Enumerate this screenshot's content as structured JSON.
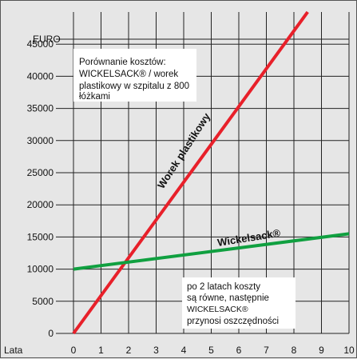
{
  "chart_data": {
    "type": "line",
    "ylabel": "EURO",
    "xlabel": "Lata",
    "xlim": [
      0,
      10
    ],
    "ylim": [
      0,
      50000
    ],
    "x_ticks": [
      "0",
      "1",
      "2",
      "3",
      "4",
      "5",
      "6",
      "7",
      "8",
      "9",
      "10"
    ],
    "y_ticks": [
      "0",
      "5000",
      "10000",
      "15000",
      "20000",
      "25000",
      "30000",
      "35000",
      "40000",
      "45000"
    ],
    "grid": true,
    "series": [
      {
        "name": "Worek plastikowy",
        "color": "#e8202a",
        "x": [
          0,
          8.5
        ],
        "y": [
          0,
          50000
        ]
      },
      {
        "name": "Wickelsack®",
        "color": "#10a040",
        "x": [
          0,
          10
        ],
        "y": [
          10000,
          15500
        ]
      }
    ],
    "annotations": {
      "top_note": [
        "Porównanie kosztów:",
        "WICKELSACK® / worek",
        "plastikowy w szpitalu z 800",
        "łóżkami"
      ],
      "bottom_note": [
        "po 2 latach koszty",
        "są równe, następnie",
        "WICKELSACK®",
        "przynosi oszczędności"
      ]
    }
  }
}
